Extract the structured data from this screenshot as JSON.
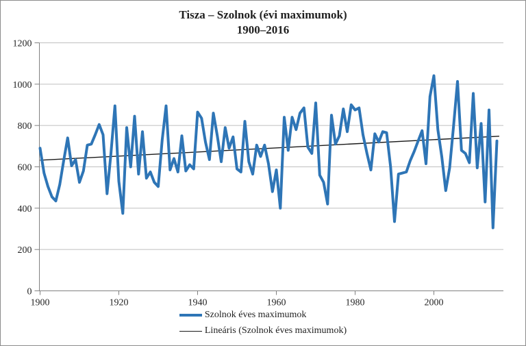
{
  "figure": {
    "title_line1": "Tisza – Szolnok (évi maximumok)",
    "title_line2": "1900–2016",
    "legend": [
      {
        "label": "Szolnok éves maximumok",
        "marker": "thick-blue-line"
      },
      {
        "label": "Lineáris (Szolnok éves maximumok)",
        "marker": "thin-black-line"
      }
    ],
    "colors": {
      "series_blue": "#2E75B6",
      "trend_black": "#1a1a1a",
      "axis_gray": "#808080",
      "grid_gray": "#bfbfbf",
      "text": "#1f1f1f"
    }
  },
  "chart_data": {
    "type": "line",
    "title": "Tisza – Szolnok (évi maximumok) 1900–2016",
    "xlabel": "",
    "ylabel": "",
    "x_start_year": 1900,
    "x_end_year": 2016,
    "xlim": [
      1900,
      2016.6
    ],
    "ylim": [
      0,
      1200
    ],
    "y_ticks": [
      0,
      200,
      400,
      600,
      800,
      1000,
      1200
    ],
    "x_ticks": [
      1900,
      1920,
      1940,
      1960,
      1980,
      2000
    ],
    "grid": "horizontal-only",
    "legend_position": "bottom",
    "series": [
      {
        "name": "Szolnok éves maximumok",
        "style": "solid-thick",
        "color": "#2E75B6",
        "values": [
          690,
          570,
          505,
          455,
          435,
          515,
          630,
          740,
          605,
          635,
          525,
          580,
          705,
          710,
          755,
          805,
          755,
          470,
          665,
          895,
          530,
          375,
          790,
          600,
          845,
          565,
          770,
          545,
          575,
          525,
          505,
          730,
          895,
          585,
          640,
          575,
          750,
          580,
          610,
          590,
          865,
          835,
          720,
          635,
          860,
          750,
          625,
          790,
          690,
          745,
          590,
          575,
          820,
          625,
          565,
          705,
          650,
          705,
          615,
          480,
          585,
          400,
          840,
          680,
          840,
          780,
          860,
          885,
          695,
          665,
          909,
          560,
          525,
          420,
          850,
          710,
          750,
          880,
          770,
          900,
          875,
          885,
          755,
          665,
          585,
          760,
          720,
          770,
          765,
          600,
          335,
          565,
          570,
          575,
          630,
          675,
          725,
          775,
          615,
          940,
          1041,
          780,
          650,
          485,
          595,
          800,
          1013,
          680,
          665,
          620,
          955,
          595,
          810,
          430,
          875,
          305,
          725
        ]
      },
      {
        "name": "Lineáris (Szolnok éves maximumok)",
        "style": "linear-trend",
        "color": "#1a1a1a",
        "endpoints": [
          [
            1900,
            632
          ],
          [
            2016.6,
            748
          ]
        ]
      }
    ]
  }
}
